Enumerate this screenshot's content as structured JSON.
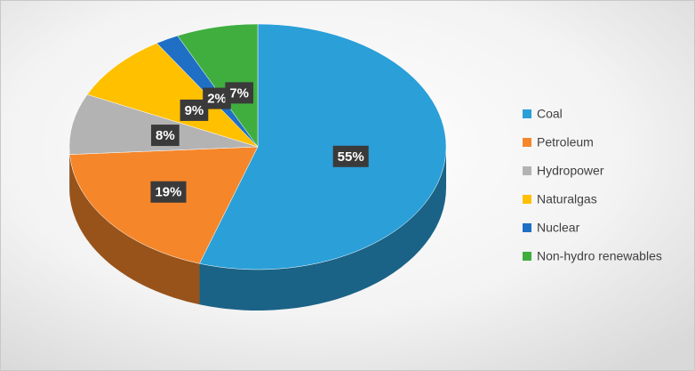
{
  "chart_data": {
    "type": "pie",
    "categories": [
      "Coal",
      "Petroleum",
      "Hydropower",
      "Naturalgas",
      "Nuclear",
      "Non-hydro renewables"
    ],
    "values": [
      55,
      19,
      8,
      9,
      2,
      7
    ],
    "value_labels": [
      "55%",
      "19%",
      "8%",
      "9%",
      "2%",
      "7%"
    ],
    "colors": [
      "#2a9fd8",
      "#f5862a",
      "#b3b3b3",
      "#ffc000",
      "#1f6fc5",
      "#3fae3f"
    ],
    "legend": "right"
  }
}
